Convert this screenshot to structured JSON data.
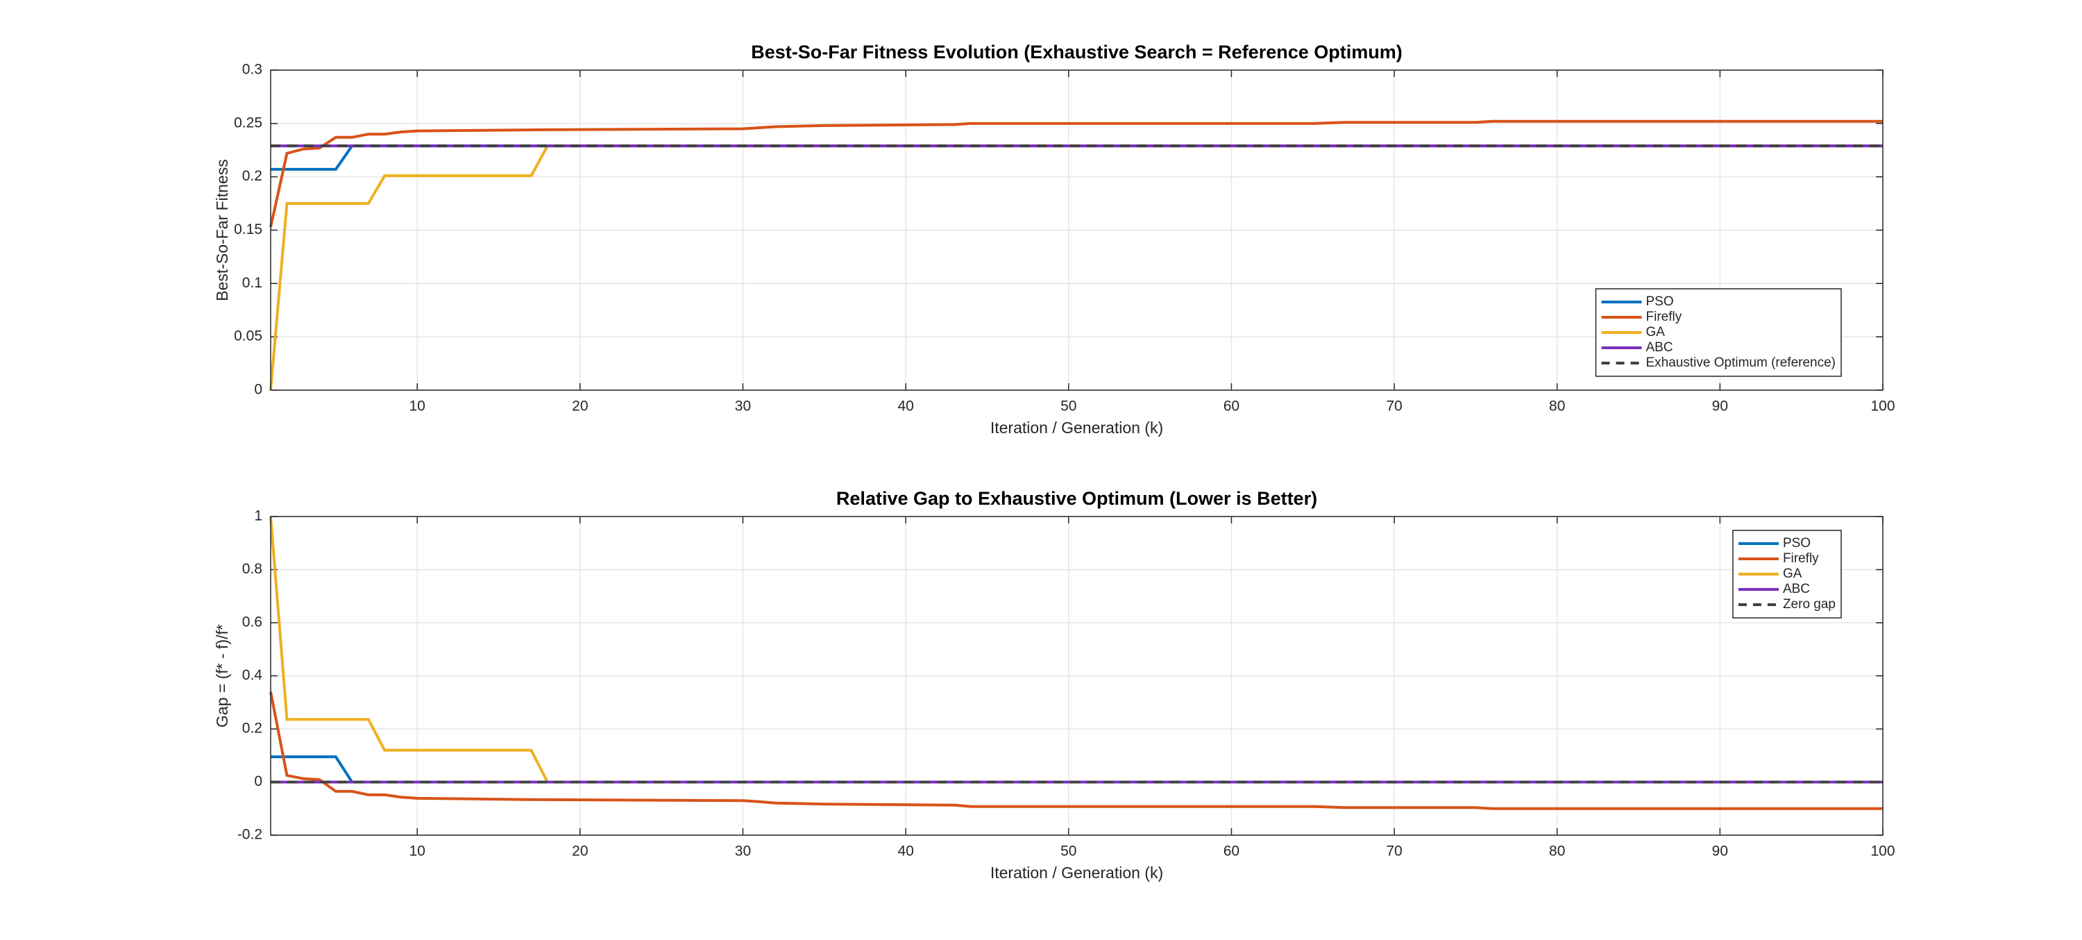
{
  "chart_data": [
    {
      "type": "line",
      "title": "Best-So-Far Fitness Evolution (Exhaustive Search = Reference Optimum)",
      "xlabel": "Iteration / Generation (k)",
      "ylabel": "Best-So-Far Fitness",
      "xlim": [
        1,
        100
      ],
      "xticks": [
        10,
        20,
        30,
        40,
        50,
        60,
        70,
        80,
        90,
        100
      ],
      "ylim": [
        0,
        0.3
      ],
      "yticks": [
        0,
        0.05,
        0.1,
        0.15,
        0.2,
        0.25,
        0.3
      ],
      "grid": true,
      "legend": "southeast",
      "series": [
        {
          "name": "PSO",
          "color": "#0072BD",
          "linestyle": "-",
          "x": [
            1,
            5,
            6,
            100
          ],
          "values": [
            0.207,
            0.207,
            0.229,
            0.229
          ]
        },
        {
          "name": "Firefly",
          "color": "#D95319",
          "linestyle": "-",
          "x": [
            1,
            2,
            3,
            4,
            5,
            6,
            7,
            8,
            9,
            10,
            17,
            30,
            31,
            32,
            35,
            43,
            44,
            65,
            67,
            75,
            76,
            100
          ],
          "values": [
            0.153,
            0.222,
            0.226,
            0.227,
            0.237,
            0.237,
            0.24,
            0.24,
            0.242,
            0.243,
            0.244,
            0.245,
            0.246,
            0.247,
            0.248,
            0.249,
            0.25,
            0.25,
            0.251,
            0.251,
            0.252,
            0.252
          ]
        },
        {
          "name": "GA",
          "color": "#EDB120",
          "linestyle": "-",
          "x": [
            1,
            2,
            7,
            8,
            17,
            18,
            100
          ],
          "values": [
            0,
            0.175,
            0.175,
            0.201,
            0.201,
            0.229,
            0.229
          ]
        },
        {
          "name": "ABC",
          "color": "#7B2FBE",
          "linestyle": "-",
          "x": [
            1,
            100
          ],
          "values": [
            0.229,
            0.229
          ]
        },
        {
          "name": "Exhaustive Optimum (reference)",
          "color": "#404040",
          "linestyle": "--",
          "x": [
            1,
            100
          ],
          "values": [
            0.229,
            0.229
          ]
        }
      ]
    },
    {
      "type": "line",
      "title": "Relative Gap to Exhaustive Optimum (Lower is Better)",
      "xlabel": "Iteration / Generation (k)",
      "ylabel": "Gap  =  (f* - f)/f*",
      "xlim": [
        1,
        100
      ],
      "xticks": [
        10,
        20,
        30,
        40,
        50,
        60,
        70,
        80,
        90,
        100
      ],
      "ylim": [
        -0.2,
        1
      ],
      "yticks": [
        -0.2,
        0,
        0.2,
        0.4,
        0.6,
        0.8,
        1
      ],
      "grid": true,
      "legend": "northeast",
      "series": [
        {
          "name": "PSO",
          "color": "#0072BD",
          "linestyle": "-",
          "x": [
            1,
            5,
            6,
            100
          ],
          "values": [
            0.095,
            0.095,
            0,
            0
          ]
        },
        {
          "name": "Firefly",
          "color": "#D95319",
          "linestyle": "-",
          "x": [
            1,
            2,
            3,
            4,
            5,
            6,
            7,
            8,
            9,
            10,
            17,
            30,
            31,
            32,
            35,
            43,
            44,
            65,
            67,
            75,
            76,
            100
          ],
          "values": [
            0.34,
            0.025,
            0.013,
            0.009,
            -0.035,
            -0.035,
            -0.048,
            -0.048,
            -0.057,
            -0.061,
            -0.066,
            -0.07,
            -0.074,
            -0.079,
            -0.083,
            -0.087,
            -0.092,
            -0.092,
            -0.096,
            -0.096,
            -0.1,
            -0.1
          ]
        },
        {
          "name": "GA",
          "color": "#EDB120",
          "linestyle": "-",
          "x": [
            1,
            2,
            7,
            8,
            17,
            18,
            100
          ],
          "values": [
            1,
            0.236,
            0.236,
            0.12,
            0.12,
            0,
            0
          ]
        },
        {
          "name": "ABC",
          "color": "#7B2FBE",
          "linestyle": "-",
          "x": [
            1,
            100
          ],
          "values": [
            0,
            0
          ]
        },
        {
          "name": "Zero gap",
          "color": "#404040",
          "linestyle": "--",
          "x": [
            1,
            100
          ],
          "values": [
            0,
            0
          ]
        }
      ]
    }
  ]
}
